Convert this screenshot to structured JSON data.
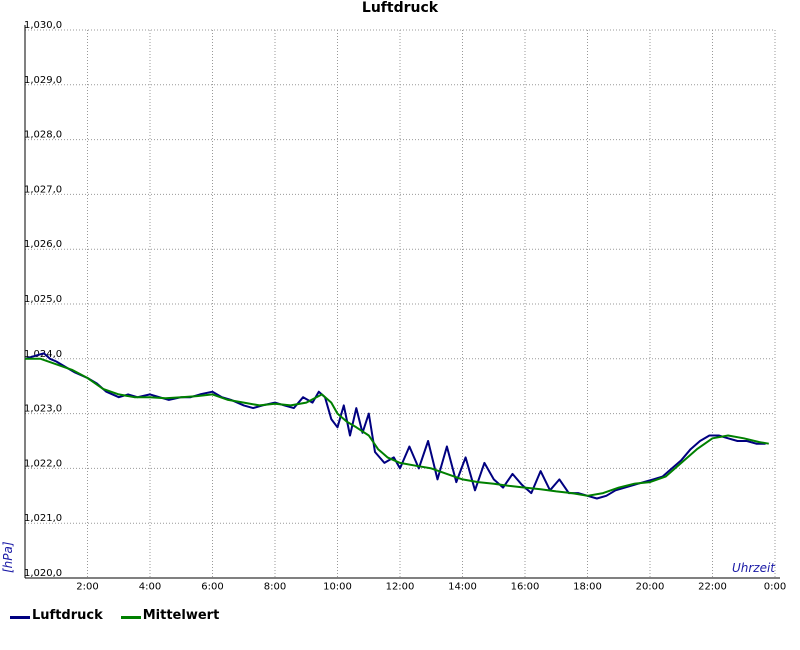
{
  "chart_data": {
    "type": "line",
    "title": "Luftdruck",
    "xlabel": "Uhrzeit",
    "ylabel": "[hPa]",
    "ylim": [
      1020.0,
      1030.0
    ],
    "xlim": [
      0,
      24
    ],
    "x_tick_labels": [
      "2:00",
      "4:00",
      "6:00",
      "8:00",
      "10:00",
      "12:00",
      "14:00",
      "16:00",
      "18:00",
      "20:00",
      "22:00",
      "0:00"
    ],
    "y_tick_labels": [
      "1,020,0",
      "1,021,0",
      "1,022,0",
      "1,023,0",
      "1,024,0",
      "1,025,0",
      "1,026,0",
      "1,027,0",
      "1,028,0",
      "1,029,0",
      "1,030,0"
    ],
    "grid": true,
    "legend_position": "bottom-left",
    "series": [
      {
        "name": "Luftdruck",
        "color": "#000080",
        "x": [
          0,
          0.3,
          0.6,
          0.8,
          1.0,
          1.3,
          1.6,
          2.0,
          2.3,
          2.6,
          3.0,
          3.3,
          3.6,
          4.0,
          4.3,
          4.6,
          5.0,
          5.3,
          5.6,
          6.0,
          6.3,
          6.6,
          7.0,
          7.3,
          7.6,
          8.0,
          8.3,
          8.6,
          8.9,
          9.2,
          9.4,
          9.6,
          9.8,
          10.0,
          10.2,
          10.4,
          10.6,
          10.8,
          11.0,
          11.2,
          11.5,
          11.8,
          12.0,
          12.3,
          12.6,
          12.9,
          13.2,
          13.5,
          13.8,
          14.1,
          14.4,
          14.7,
          15.0,
          15.3,
          15.6,
          15.9,
          16.2,
          16.5,
          16.8,
          17.1,
          17.4,
          17.7,
          18.0,
          18.3,
          18.6,
          18.9,
          19.2,
          19.5,
          19.8,
          20.1,
          20.4,
          20.7,
          21.0,
          21.3,
          21.6,
          21.9,
          22.2,
          22.5,
          22.8,
          23.1,
          23.4,
          23.7
        ],
        "values": [
          1024.0,
          1024.05,
          1024.1,
          1024.0,
          1023.95,
          1023.85,
          1023.75,
          1023.65,
          1023.55,
          1023.4,
          1023.3,
          1023.35,
          1023.3,
          1023.35,
          1023.3,
          1023.25,
          1023.3,
          1023.3,
          1023.35,
          1023.4,
          1023.3,
          1023.25,
          1023.15,
          1023.1,
          1023.15,
          1023.2,
          1023.15,
          1023.1,
          1023.3,
          1023.2,
          1023.4,
          1023.3,
          1022.9,
          1022.75,
          1023.15,
          1022.6,
          1023.1,
          1022.65,
          1023.0,
          1022.3,
          1022.1,
          1022.2,
          1022.0,
          1022.4,
          1022.0,
          1022.5,
          1021.8,
          1022.4,
          1021.75,
          1022.2,
          1021.6,
          1022.1,
          1021.8,
          1021.65,
          1021.9,
          1021.7,
          1021.55,
          1021.95,
          1021.6,
          1021.8,
          1021.55,
          1021.55,
          1021.5,
          1021.45,
          1021.5,
          1021.6,
          1021.65,
          1021.7,
          1021.75,
          1021.8,
          1021.85,
          1022.0,
          1022.15,
          1022.35,
          1022.5,
          1022.6,
          1022.6,
          1022.55,
          1022.5,
          1022.5,
          1022.45,
          1022.45
        ]
      },
      {
        "name": "Mittelwert",
        "color": "#008000",
        "x": [
          0,
          0.5,
          1.0,
          1.5,
          2.0,
          2.5,
          3.0,
          3.5,
          4.0,
          4.5,
          5.0,
          5.5,
          6.0,
          6.5,
          7.0,
          7.5,
          8.0,
          8.5,
          9.0,
          9.5,
          9.8,
          10.0,
          10.3,
          10.6,
          11.0,
          11.3,
          11.6,
          12.0,
          12.5,
          13.0,
          13.5,
          14.0,
          14.5,
          15.0,
          15.5,
          16.0,
          16.5,
          17.0,
          17.5,
          18.0,
          18.5,
          19.0,
          19.5,
          20.0,
          20.5,
          21.0,
          21.5,
          22.0,
          22.5,
          23.0,
          23.5,
          23.8
        ],
        "values": [
          1024.0,
          1024.0,
          1023.9,
          1023.8,
          1023.65,
          1023.45,
          1023.35,
          1023.3,
          1023.3,
          1023.28,
          1023.3,
          1023.32,
          1023.35,
          1023.25,
          1023.2,
          1023.15,
          1023.18,
          1023.15,
          1023.2,
          1023.35,
          1023.2,
          1023.0,
          1022.85,
          1022.75,
          1022.6,
          1022.35,
          1022.2,
          1022.1,
          1022.05,
          1022.0,
          1021.9,
          1021.8,
          1021.75,
          1021.72,
          1021.68,
          1021.65,
          1021.62,
          1021.58,
          1021.55,
          1021.5,
          1021.55,
          1021.65,
          1021.72,
          1021.75,
          1021.85,
          1022.1,
          1022.35,
          1022.55,
          1022.6,
          1022.55,
          1022.48,
          1022.45
        ]
      }
    ]
  }
}
